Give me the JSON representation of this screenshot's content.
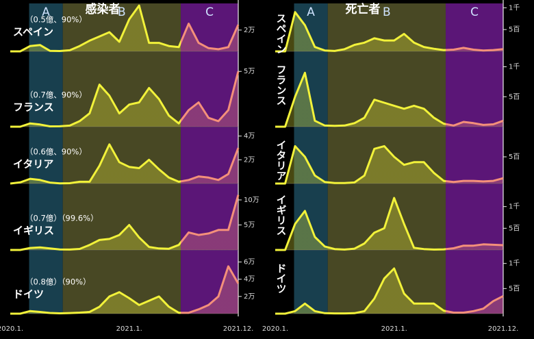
{
  "chart_data": [
    {
      "type": "line",
      "title": "感染者",
      "categories": [
        "2020.1.",
        null,
        null,
        null,
        null,
        null,
        null,
        null,
        null,
        null,
        null,
        null,
        "2021.1.",
        null,
        null,
        null,
        null,
        null,
        null,
        null,
        null,
        null,
        null,
        "2021.12."
      ],
      "color": "#f2f23a",
      "regions": [
        {
          "label": "A",
          "start": 1.9,
          "end": 5.3,
          "color": "#1c4a5c"
        },
        {
          "label": "B",
          "start": 5.3,
          "end": 17.2,
          "color": "#55552a"
        },
        {
          "label": "C",
          "start": 17.2,
          "end": 23,
          "color": "#6b1a8c",
          "line_color": "#f4907a"
        }
      ],
      "panels": [
        {
          "name": "スペイン",
          "note": "（0.5億、90%）",
          "ylim": [
            0,
            45000
          ],
          "yticks": [
            {
              "value": 20000,
              "label": "2万"
            }
          ],
          "values": [
            0,
            0,
            5000,
            6000,
            500,
            300,
            1000,
            5000,
            10000,
            14000,
            18000,
            9000,
            30000,
            43000,
            8000,
            8000,
            5000,
            4000,
            26000,
            8000,
            3000,
            2000,
            4000,
            25000
          ]
        },
        {
          "name": "フランス",
          "note": "（0.7億、90%）",
          "ylim": [
            0,
            65000
          ],
          "yticks": [
            {
              "value": 50000,
              "label": "5万"
            }
          ],
          "values": [
            0,
            0,
            3000,
            2000,
            300,
            400,
            1000,
            5000,
            12000,
            38000,
            28000,
            12000,
            20000,
            22000,
            35000,
            25000,
            10000,
            3000,
            15000,
            22000,
            8000,
            5000,
            15000,
            50000
          ]
        },
        {
          "name": "イタリア",
          "note": "（0.6億、90%）",
          "ylim": [
            0,
            45000
          ],
          "yticks": [
            {
              "value": 40000,
              "label": "4万"
            },
            {
              "value": 20000,
              "label": "2万"
            }
          ],
          "values": [
            0,
            1000,
            4000,
            3000,
            800,
            200,
            300,
            1500,
            1500,
            15000,
            33000,
            18000,
            14000,
            13000,
            20000,
            12000,
            5000,
            1500,
            3000,
            6000,
            5000,
            3000,
            8000,
            30000
          ]
        },
        {
          "name": "イギリス",
          "note": "（0.7億）（99.6%）",
          "ylim": [
            0,
            130000
          ],
          "yticks": [
            {
              "value": 100000,
              "label": "10万"
            },
            {
              "value": 50000,
              "label": "5万"
            }
          ],
          "values": [
            0,
            0,
            4000,
            5000,
            3000,
            1000,
            800,
            2000,
            10000,
            20000,
            22000,
            30000,
            50000,
            25000,
            6000,
            3000,
            2500,
            10000,
            35000,
            30000,
            33000,
            40000,
            40000,
            110000
          ]
        },
        {
          "name": "ドイツ",
          "note": "（0.8億）（90%）",
          "ylim": [
            0,
            70000
          ],
          "yticks": [
            {
              "value": 60000,
              "label": "6万"
            },
            {
              "value": 40000,
              "label": "4万"
            },
            {
              "value": 20000,
              "label": "2万"
            }
          ],
          "values": [
            0,
            0,
            3000,
            2000,
            800,
            400,
            700,
            1200,
            2000,
            8000,
            20000,
            25000,
            18000,
            10000,
            15000,
            20000,
            8000,
            1000,
            1000,
            5000,
            10000,
            20000,
            55000,
            35000
          ]
        }
      ]
    },
    {
      "type": "line",
      "title": "死亡者",
      "categories": [
        "2020.1.",
        null,
        null,
        null,
        null,
        null,
        null,
        null,
        null,
        null,
        null,
        null,
        "2021.1.",
        null,
        null,
        null,
        null,
        null,
        null,
        null,
        null,
        null,
        null,
        "2021.12."
      ],
      "color": "#f2f23a",
      "regions": [
        {
          "label": "A",
          "start": 1.9,
          "end": 5.3,
          "color": "#1c4a5c"
        },
        {
          "label": "B",
          "start": 5.3,
          "end": 17.2,
          "color": "#55552a"
        },
        {
          "label": "C",
          "start": 17.2,
          "end": 23,
          "color": "#6b1a8c",
          "line_color": "#f4907a"
        }
      ],
      "panels": [
        {
          "name": "スペイン",
          "ylim": [
            0,
            1100
          ],
          "yticks": [
            {
              "value": 1000,
              "label": "1千"
            },
            {
              "value": 500,
              "label": "5百"
            }
          ],
          "values": [
            0,
            0,
            900,
            600,
            100,
            20,
            10,
            50,
            150,
            200,
            300,
            250,
            250,
            400,
            200,
            100,
            60,
            30,
            40,
            80,
            40,
            20,
            30,
            50
          ]
        },
        {
          "name": "フランス",
          "ylim": [
            0,
            1200
          ],
          "yticks": [
            {
              "value": 1000,
              "label": "1千"
            },
            {
              "value": 500,
              "label": "5百"
            }
          ],
          "values": [
            0,
            0,
            500,
            900,
            100,
            20,
            15,
            20,
            60,
            150,
            450,
            400,
            350,
            300,
            350,
            300,
            150,
            50,
            20,
            80,
            60,
            30,
            40,
            100
          ]
        },
        {
          "name": "イタリア",
          "ylim": [
            0,
            1000
          ],
          "yticks": [
            {
              "value": 500,
              "label": "5百"
            }
          ],
          "values": [
            0,
            0,
            700,
            500,
            150,
            30,
            10,
            10,
            20,
            150,
            650,
            700,
            500,
            350,
            400,
            400,
            200,
            50,
            30,
            50,
            50,
            40,
            50,
            100
          ]
        },
        {
          "name": "イギリス",
          "ylim": [
            0,
            1500
          ],
          "yticks": [
            {
              "value": 1000,
              "label": "1千"
            },
            {
              "value": 500,
              "label": "5百"
            }
          ],
          "values": [
            0,
            0,
            600,
            900,
            300,
            80,
            20,
            10,
            30,
            150,
            400,
            500,
            1200,
            600,
            50,
            20,
            10,
            15,
            40,
            100,
            100,
            130,
            120,
            110
          ]
        },
        {
          "name": "ドイツ",
          "ylim": [
            0,
            1200
          ],
          "yticks": [
            {
              "value": 1000,
              "label": "1千"
            },
            {
              "value": 500,
              "label": "5百"
            }
          ],
          "values": [
            0,
            0,
            50,
            200,
            50,
            10,
            5,
            5,
            10,
            50,
            300,
            700,
            900,
            400,
            200,
            200,
            200,
            60,
            20,
            20,
            50,
            100,
            250,
            350
          ]
        }
      ]
    }
  ]
}
